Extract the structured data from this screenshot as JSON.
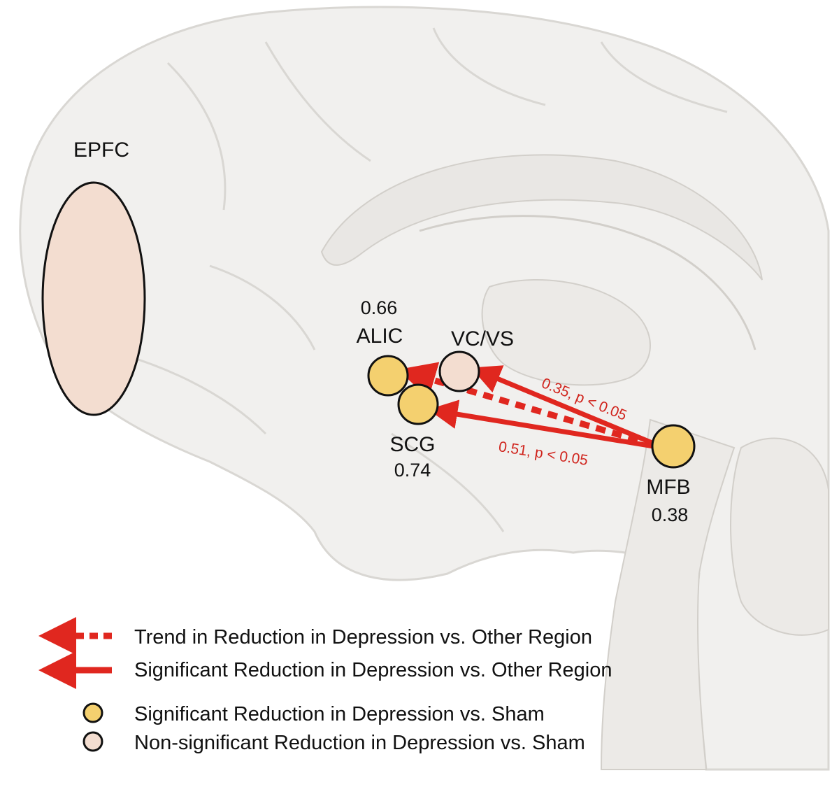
{
  "colors": {
    "significant_fill": "#f4d06f",
    "nonsignificant_fill": "#f3ddd0",
    "arrow_red": "#e0271f",
    "brain_fill": "#f1f0ee",
    "brain_stroke": "#d9d7d3"
  },
  "regions": {
    "epfc": {
      "label": "EPFC"
    },
    "alic": {
      "label": "ALIC",
      "value": "0.66"
    },
    "vcvs": {
      "label": "VC/VS"
    },
    "scg": {
      "label": "SCG",
      "value": "0.74"
    },
    "mfb": {
      "label": "MFB",
      "value": "0.38"
    }
  },
  "connections": {
    "mfb_vcvs": {
      "text": "0.35, p < 0.05",
      "style": "solid"
    },
    "mfb_scg": {
      "text": "0.51, p < 0.05",
      "style": "solid"
    },
    "mfb_alic": {
      "style": "dashed"
    }
  },
  "legend": {
    "trend": "Trend in Reduction in Depression vs. Other Region",
    "significant_region": "Significant Reduction in Depression vs. Other Region",
    "significant_sham": "Significant Reduction in Depression vs. Sham",
    "nonsignificant_sham": "Non-significant Reduction in Depression vs. Sham"
  }
}
